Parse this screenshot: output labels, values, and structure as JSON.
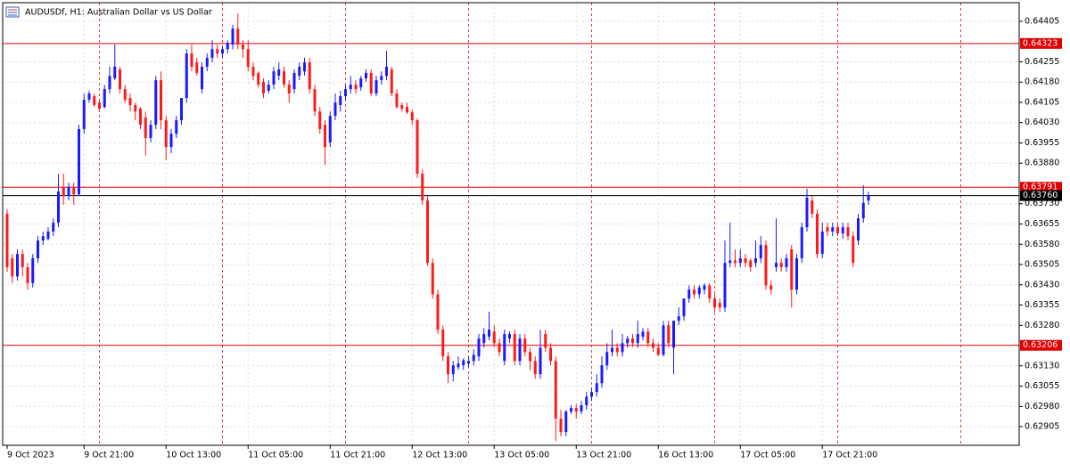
{
  "chart_data": {
    "type": "candlestick",
    "title": "AUDUSDf, H1:  Australian Dollar vs US Dollar",
    "up_color": "#1a1aff",
    "down_color": "#ff1a1a",
    "grid": true,
    "ylim": [
      0.62836,
      0.64474
    ],
    "yticks": [
      0.64405,
      0.64255,
      {
        "value": 0.6418,
        "label": "0.64180"
      },
      0.64105,
      {
        "value": 0.6403,
        "label": "0.64030"
      },
      0.63955,
      {
        "value": 0.6388,
        "label": "0.63880"
      },
      {
        "value": 0.6373,
        "label": "0.63730"
      },
      0.63655,
      {
        "value": 0.6358,
        "label": "0.63580"
      },
      0.63505,
      {
        "value": 0.6343,
        "label": "0.63430"
      },
      0.63355,
      {
        "value": 0.6328,
        "label": "0.63280"
      },
      {
        "value": 0.6313,
        "label": "0.63130"
      },
      0.63055,
      {
        "value": 0.6298,
        "label": "0.62980"
      },
      0.62905
    ],
    "levels": [
      0.64323,
      0.63791,
      0.63206
    ],
    "level_color": "#e00000",
    "price_line": {
      "value": 0.6376,
      "label": "0.63760"
    },
    "price_line_color": "#000000",
    "categories": [
      "9 Oct 2023",
      null,
      null,
      null,
      null,
      null,
      null,
      null,
      null,
      null,
      null,
      null,
      null,
      null,
      null,
      "9 Oct 21:00",
      null,
      null,
      null,
      null,
      null,
      null,
      null,
      null,
      null,
      null,
      null,
      null,
      null,
      null,
      null,
      "10 Oct 13:00",
      null,
      null,
      null,
      null,
      null,
      null,
      null,
      null,
      null,
      null,
      null,
      null,
      null,
      null,
      null,
      "11 Oct 05:00",
      null,
      null,
      null,
      null,
      null,
      null,
      null,
      null,
      null,
      null,
      null,
      null,
      null,
      null,
      null,
      "11 Oct 21:00",
      null,
      null,
      null,
      null,
      null,
      null,
      null,
      null,
      null,
      null,
      null,
      null,
      null,
      null,
      null,
      "12 Oct 13:00",
      null,
      null,
      null,
      null,
      null,
      null,
      null,
      null,
      null,
      null,
      null,
      null,
      null,
      null,
      null,
      "13 Oct 05:00",
      null,
      null,
      null,
      null,
      null,
      null,
      null,
      null,
      null,
      null,
      null,
      null,
      null,
      null,
      null,
      "13 Oct 21:00",
      null,
      null,
      null,
      null,
      null,
      null,
      null,
      null,
      null,
      null,
      null,
      null,
      null,
      null,
      null,
      "16 Oct 13:00",
      null,
      null,
      null,
      null,
      null,
      null,
      null,
      null,
      null,
      null,
      null,
      null,
      null,
      null,
      null,
      "17 Oct 05:00",
      null,
      null,
      null,
      null,
      null,
      null,
      null,
      null,
      null,
      null,
      null,
      null,
      null,
      null,
      null,
      "17 Oct 21:00",
      null,
      null,
      null,
      null,
      null,
      null,
      null,
      null,
      null
    ],
    "open": [
      0.63693,
      0.63528,
      0.63461,
      0.63544,
      0.63495,
      0.63436,
      0.63528,
      0.63594,
      0.636,
      0.63627,
      0.6366,
      0.63792,
      0.63759,
      0.63792,
      0.63765,
      0.64006,
      0.64115,
      0.64128,
      0.64104,
      0.64088,
      0.64154,
      0.64194,
      0.64227,
      0.64154,
      0.64121,
      0.64095,
      0.64082,
      0.64049,
      0.63973,
      0.64022,
      0.64187,
      0.64039,
      0.6394,
      0.63989,
      0.64039,
      0.64121,
      0.64286,
      0.64253,
      0.64154,
      0.64237,
      0.6427,
      0.64302,
      0.64286,
      0.64302,
      0.64319,
      0.64378,
      0.64319,
      0.64302,
      0.64237,
      0.64214,
      0.64181,
      0.64148,
      0.64171,
      0.64204,
      0.6422,
      0.64171,
      0.64154,
      0.64204,
      0.6422,
      0.64253,
      0.64154,
      0.64071,
      0.64022,
      0.63957,
      0.64055,
      0.64095,
      0.64128,
      0.64154,
      0.64171,
      0.64161,
      0.64194,
      0.64214,
      0.64138,
      0.64187,
      0.64203,
      0.64227,
      0.64138,
      0.64095,
      0.64088,
      0.64068,
      0.64039,
      0.63841,
      0.63742,
      0.63511,
      0.63395,
      0.63264,
      0.63165,
      0.63099,
      0.63125,
      0.63132,
      0.63138,
      0.63148,
      0.63165,
      0.63214,
      0.63238,
      0.63257,
      0.63214,
      0.63148,
      0.63231,
      0.63248,
      0.63148,
      0.63231,
      0.63181,
      0.63148,
      0.63099,
      0.63248,
      0.63197,
      0.63148,
      0.62935,
      0.62885,
      0.62961,
      0.62974,
      0.62961,
      0.62984,
      0.63016,
      0.63033,
      0.63066,
      0.63132,
      0.63181,
      0.63197,
      0.63181,
      0.63214,
      0.63231,
      0.63214,
      0.63238,
      0.63257,
      0.63214,
      0.63197,
      0.63171,
      0.6328,
      0.63197,
      0.63297,
      0.63313,
      0.63379,
      0.63412,
      0.63395,
      0.63412,
      0.63428,
      0.63379,
      0.63363,
      0.63346,
      0.63511,
      0.6352,
      0.63511,
      0.63528,
      0.6352,
      0.63511,
      0.63528,
      0.63577,
      0.63428,
      0.63495,
      0.63511,
      0.63495,
      0.63561,
      0.63412,
      0.63528,
      0.63643,
      0.63742,
      0.63693,
      0.63544,
      0.63643,
      0.63627,
      0.63643,
      0.6362,
      0.63643,
      0.6361,
      0.63594,
      0.63676,
      0.63742
    ],
    "high": [
      0.63709,
      0.63544,
      0.63561,
      0.63561,
      0.63511,
      0.63544,
      0.6361,
      0.63627,
      0.63643,
      0.63676,
      0.63841,
      0.63841,
      0.63808,
      0.63808,
      0.64022,
      0.64138,
      0.64148,
      0.64138,
      0.64115,
      0.6417,
      0.64237,
      0.64319,
      0.64237,
      0.6417,
      0.64138,
      0.64104,
      0.64088,
      0.64071,
      0.64039,
      0.64203,
      0.6422,
      0.64055,
      0.64006,
      0.64055,
      0.64121,
      0.64302,
      0.64319,
      0.6427,
      0.64253,
      0.64286,
      0.64335,
      0.64319,
      0.64312,
      0.64335,
      0.64392,
      0.64434,
      0.64335,
      0.64335,
      0.64253,
      0.6422,
      0.64194,
      0.64187,
      0.64237,
      0.64253,
      0.64237,
      0.64187,
      0.64227,
      0.64253,
      0.6427,
      0.6427,
      0.6417,
      0.64088,
      0.64039,
      0.64071,
      0.64138,
      0.64148,
      0.6417,
      0.64203,
      0.64187,
      0.64203,
      0.64227,
      0.64227,
      0.64203,
      0.6422,
      0.64296,
      0.64237,
      0.64154,
      0.64104,
      0.64104,
      0.64078,
      0.64045,
      0.63858,
      0.63759,
      0.63528,
      0.63412,
      0.6328,
      0.63181,
      0.63148,
      0.63165,
      0.63158,
      0.63165,
      0.63191,
      0.63248,
      0.6327,
      0.6333,
      0.6328,
      0.63231,
      0.63264,
      0.63257,
      0.63264,
      0.63248,
      0.63248,
      0.63197,
      0.63165,
      0.63264,
      0.63264,
      0.63214,
      0.63165,
      0.62967,
      0.62967,
      0.62984,
      0.6299,
      0.63,
      0.63033,
      0.63049,
      0.63099,
      0.63165,
      0.63214,
      0.63264,
      0.63214,
      0.63248,
      0.63241,
      0.63248,
      0.63297,
      0.6327,
      0.6327,
      0.63231,
      0.63214,
      0.63297,
      0.63297,
      0.63297,
      0.63346,
      0.63379,
      0.63428,
      0.63428,
      0.63428,
      0.63436,
      0.63436,
      0.63395,
      0.63379,
      0.63594,
      0.6366,
      0.63561,
      0.63561,
      0.63544,
      0.63528,
      0.63594,
      0.6361,
      0.63594,
      0.63445,
      0.63676,
      0.63528,
      0.63544,
      0.63577,
      0.63544,
      0.6366,
      0.63785,
      0.63759,
      0.63709,
      0.6366,
      0.6366,
      0.6366,
      0.6366,
      0.6366,
      0.6366,
      0.63627,
      0.63693,
      0.63798,
      0.63775
    ],
    "low": [
      0.63478,
      0.63436,
      0.63445,
      0.63461,
      0.63412,
      0.6342,
      0.63511,
      0.63577,
      0.63594,
      0.6361,
      0.63643,
      0.63726,
      0.63742,
      0.63726,
      0.63759,
      0.63989,
      0.64104,
      0.64088,
      0.64071,
      0.64082,
      0.64138,
      0.64187,
      0.64138,
      0.64104,
      0.64071,
      0.64039,
      0.64006,
      0.63907,
      0.63957,
      0.64006,
      0.64006,
      0.63891,
      0.63917,
      0.63973,
      0.64022,
      0.64104,
      0.6422,
      0.64204,
      0.64138,
      0.6422,
      0.64253,
      0.6427,
      0.6427,
      0.64286,
      0.64302,
      0.64302,
      0.6427,
      0.6422,
      0.64187,
      0.6416,
      0.64121,
      0.64138,
      0.64154,
      0.64187,
      0.6416,
      0.64104,
      0.64138,
      0.64187,
      0.64204,
      0.64138,
      0.64055,
      0.63989,
      0.63874,
      0.6394,
      0.64039,
      0.64071,
      0.64115,
      0.64138,
      0.64138,
      0.64148,
      0.64181,
      0.64128,
      0.64128,
      0.64171,
      0.64187,
      0.64128,
      0.64082,
      0.64071,
      0.64062,
      0.64022,
      0.63825,
      0.63726,
      0.63501,
      0.63378,
      0.63248,
      0.63148,
      0.63066,
      0.63072,
      0.63115,
      0.63115,
      0.63125,
      0.63132,
      0.63148,
      0.63197,
      0.63225,
      0.632,
      0.63165,
      0.63132,
      0.63214,
      0.63132,
      0.63132,
      0.63165,
      0.63115,
      0.63082,
      0.63082,
      0.63181,
      0.63132,
      0.62852,
      0.62869,
      0.62869,
      0.62951,
      0.62935,
      0.62951,
      0.62967,
      0.63,
      0.63016,
      0.63049,
      0.63115,
      0.63165,
      0.63165,
      0.63165,
      0.63197,
      0.632,
      0.63197,
      0.63225,
      0.632,
      0.63181,
      0.63165,
      0.63165,
      0.63197,
      0.63099,
      0.6328,
      0.63297,
      0.63363,
      0.63379,
      0.63379,
      0.63395,
      0.63363,
      0.6333,
      0.6333,
      0.6333,
      0.63495,
      0.63495,
      0.63495,
      0.63495,
      0.63478,
      0.63495,
      0.63511,
      0.63412,
      0.63395,
      0.63478,
      0.63478,
      0.63478,
      0.63346,
      0.63395,
      0.63511,
      0.63627,
      0.63676,
      0.63528,
      0.63528,
      0.6361,
      0.6361,
      0.6361,
      0.636,
      0.63594,
      0.63495,
      0.63577,
      0.6366,
      0.63726
    ],
    "close": [
      0.63495,
      0.63461,
      0.63544,
      0.63495,
      0.63436,
      0.63528,
      0.63594,
      0.6361,
      0.63627,
      0.6366,
      0.63775,
      0.63759,
      0.63792,
      0.63765,
      0.64006,
      0.64115,
      0.64138,
      0.64095,
      0.64082,
      0.64154,
      0.64203,
      0.64237,
      0.64154,
      0.64115,
      0.64095,
      0.64071,
      0.64022,
      0.63973,
      0.64022,
      0.64187,
      0.64039,
      0.6394,
      0.63989,
      0.64039,
      0.64121,
      0.64286,
      0.64237,
      0.64214,
      0.64237,
      0.6427,
      0.64302,
      0.64286,
      0.64302,
      0.64325,
      0.64378,
      0.64319,
      0.64302,
      0.64237,
      0.64203,
      0.64171,
      0.64138,
      0.64171,
      0.6422,
      0.64227,
      0.64171,
      0.64138,
      0.64214,
      0.64237,
      0.64253,
      0.64154,
      0.64071,
      0.64006,
      0.6394,
      0.64055,
      0.64104,
      0.64128,
      0.64154,
      0.64171,
      0.64154,
      0.64194,
      0.64214,
      0.64138,
      0.64187,
      0.64203,
      0.64237,
      0.64138,
      0.64088,
      0.64082,
      0.64068,
      0.64039,
      0.63841,
      0.63742,
      0.63511,
      0.63395,
      0.63264,
      0.63165,
      0.63099,
      0.63132,
      0.63138,
      0.63151,
      0.63148,
      0.63171,
      0.63231,
      0.63248,
      0.63264,
      0.63214,
      0.63181,
      0.63248,
      0.63248,
      0.63148,
      0.63231,
      0.63181,
      0.63148,
      0.63099,
      0.63197,
      0.63197,
      0.63148,
      0.62935,
      0.62885,
      0.62961,
      0.62974,
      0.62961,
      0.62984,
      0.63016,
      0.63033,
      0.63066,
      0.63132,
      0.63181,
      0.63197,
      0.63181,
      0.63214,
      0.63231,
      0.63214,
      0.63248,
      0.63257,
      0.63214,
      0.63197,
      0.63171,
      0.6328,
      0.63214,
      0.63297,
      0.63313,
      0.63379,
      0.63412,
      0.63395,
      0.6342,
      0.63428,
      0.63379,
      0.63346,
      0.63346,
      0.63511,
      0.6352,
      0.63511,
      0.63528,
      0.63511,
      0.63495,
      0.63528,
      0.63577,
      0.63428,
      0.63412,
      0.63511,
      0.63495,
      0.63528,
      0.63412,
      0.63528,
      0.63643,
      0.63752,
      0.63693,
      0.63544,
      0.63627,
      0.63627,
      0.63643,
      0.6362,
      0.63643,
      0.6361,
      0.63511,
      0.63676,
      0.63733,
      0.6376
    ]
  }
}
